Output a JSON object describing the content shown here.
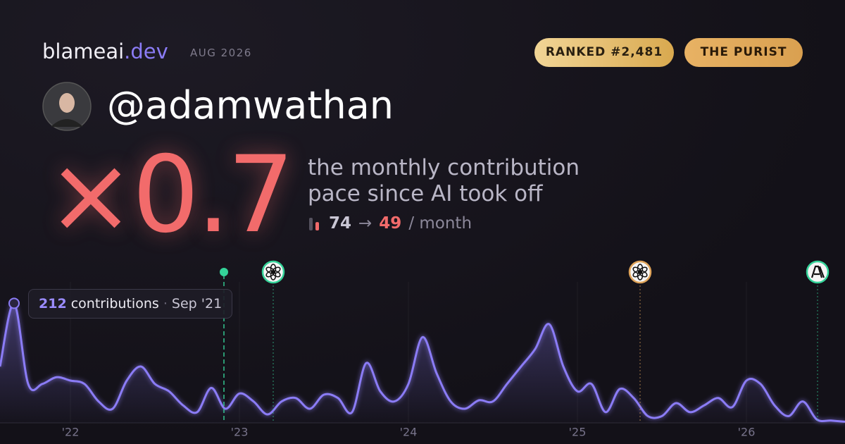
{
  "header": {
    "brand": "blameai",
    "brand_suffix": ".dev",
    "date": "AUG 2026",
    "badges": [
      "RANKED #2,481",
      "THE PURIST"
    ],
    "handle": "@adamwathan"
  },
  "headline": {
    "multiplier": "×0.7",
    "lines": [
      "the monthly contribution",
      "pace since AI took off"
    ],
    "before": 74,
    "arrow": "→",
    "after": 49,
    "unit": "/ month"
  },
  "chart_data": {
    "type": "line",
    "color": "#8b7cf6",
    "x": [
      0,
      1,
      2,
      3,
      4,
      5,
      6,
      7,
      8,
      9,
      10,
      11,
      12,
      13,
      14,
      15,
      16,
      17,
      18,
      19,
      20,
      21,
      22,
      23,
      24,
      25,
      26,
      27,
      28,
      29,
      30,
      31,
      32,
      33,
      34,
      35,
      36,
      37,
      38,
      39,
      40,
      41,
      42,
      43,
      44,
      45,
      46,
      47,
      48,
      49,
      50,
      51,
      52,
      53,
      54,
      55,
      56,
      57,
      58,
      59,
      60
    ],
    "values": [
      100,
      212,
      69,
      69,
      81,
      75,
      69,
      38,
      25,
      75,
      100,
      69,
      56,
      31,
      19,
      62,
      25,
      52,
      38,
      15,
      38,
      44,
      25,
      50,
      44,
      19,
      106,
      56,
      38,
      69,
      152,
      88,
      38,
      25,
      40,
      38,
      69,
      100,
      131,
      175,
      100,
      56,
      69,
      19,
      60,
      44,
      12,
      12,
      35,
      19,
      31,
      44,
      28,
      75,
      69,
      31,
      12,
      38,
      6,
      4,
      2
    ],
    "xlim": [
      0,
      60
    ],
    "ylim": [
      0,
      250
    ],
    "xticks": [
      {
        "value": 5,
        "label": "'22"
      },
      {
        "value": 17,
        "label": "'23"
      },
      {
        "value": 29,
        "label": "'24"
      },
      {
        "value": 41,
        "label": "'25"
      },
      {
        "value": 53,
        "label": "'26"
      }
    ],
    "markers": [
      15.9,
      19.4,
      45.45,
      58.05
    ],
    "tooltip": {
      "value": 212,
      "label": "contributions",
      "date": "Sep '21"
    }
  }
}
